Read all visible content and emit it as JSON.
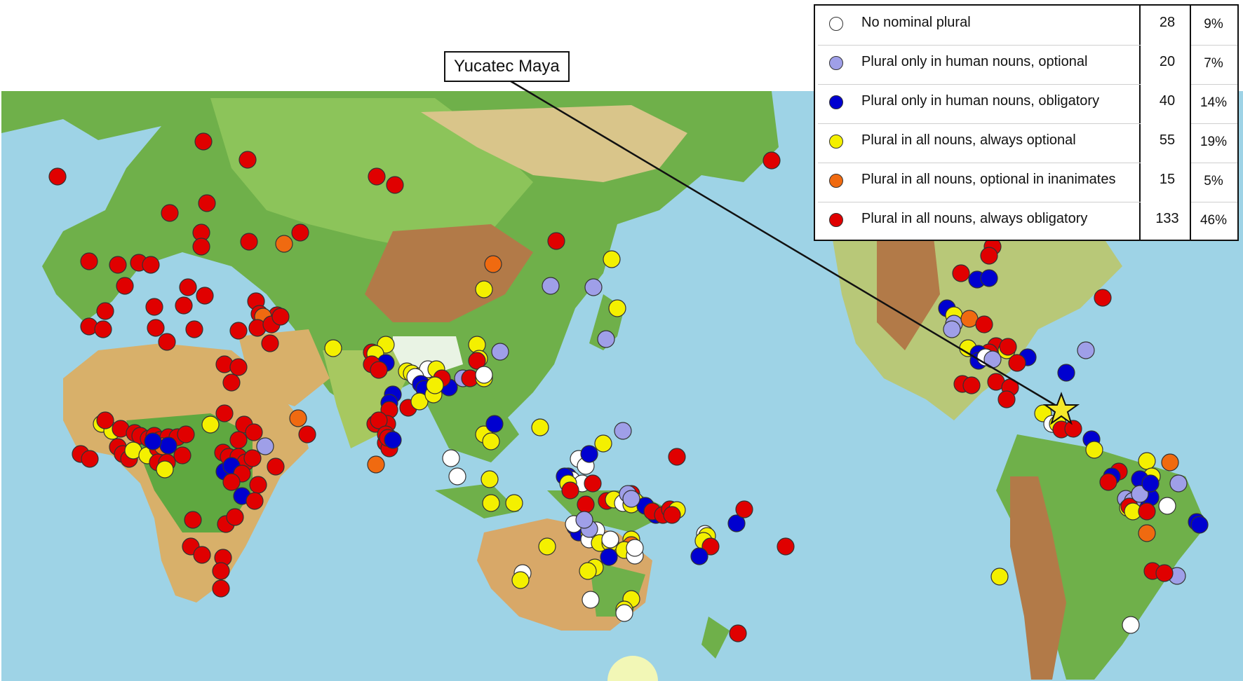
{
  "annotation": {
    "label": "Yucatec Maya"
  },
  "colors": {
    "white": "#ffffff",
    "lavender": "#9f9fe8",
    "blue": "#0000d0",
    "yellow": "#f4f000",
    "orange": "#f06a10",
    "red": "#e00000",
    "ocean": "#9ed3e6",
    "star": "#f4e82a"
  },
  "legend": {
    "rows": [
      {
        "label": "No nominal plural",
        "count": "28",
        "percent": "9%",
        "color": "#ffffff"
      },
      {
        "label": "Plural only in human nouns, optional",
        "count": "20",
        "percent": "7%",
        "color": "#9f9fe8"
      },
      {
        "label": "Plural only in human nouns, obligatory",
        "count": "40",
        "percent": "14%",
        "color": "#0000d0"
      },
      {
        "label": "Plural in all nouns, always optional",
        "count": "55",
        "percent": "19%",
        "color": "#f4f000"
      },
      {
        "label": "Plural in all nouns, optional in inanimates",
        "count": "15",
        "percent": "5%",
        "color": "#f06a10"
      },
      {
        "label": "Plural in all nouns, always obligatory",
        "count": "133",
        "percent": "46%",
        "color": "#e00000"
      }
    ]
  }
}
